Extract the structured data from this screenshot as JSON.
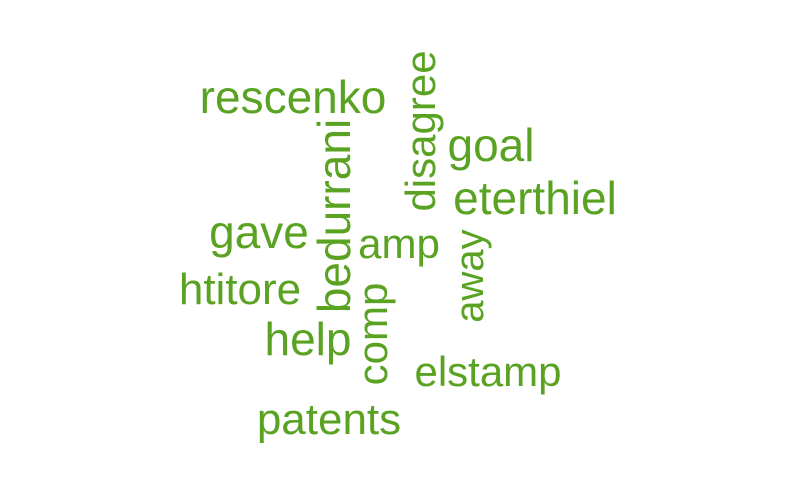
{
  "word_cloud": {
    "color": "#5aa222",
    "words": [
      {
        "text": "rescenko",
        "orientation": "horizontal"
      },
      {
        "text": "disagree",
        "orientation": "vertical"
      },
      {
        "text": "goal",
        "orientation": "horizontal"
      },
      {
        "text": "bedurrani",
        "orientation": "vertical"
      },
      {
        "text": "eterthiel",
        "orientation": "horizontal"
      },
      {
        "text": "gave",
        "orientation": "horizontal"
      },
      {
        "text": "amp",
        "orientation": "horizontal"
      },
      {
        "text": "away",
        "orientation": "vertical"
      },
      {
        "text": "htitore",
        "orientation": "horizontal"
      },
      {
        "text": "comp",
        "orientation": "vertical"
      },
      {
        "text": "help",
        "orientation": "horizontal"
      },
      {
        "text": "elstamp",
        "orientation": "horizontal"
      },
      {
        "text": "patents",
        "orientation": "horizontal"
      }
    ]
  }
}
